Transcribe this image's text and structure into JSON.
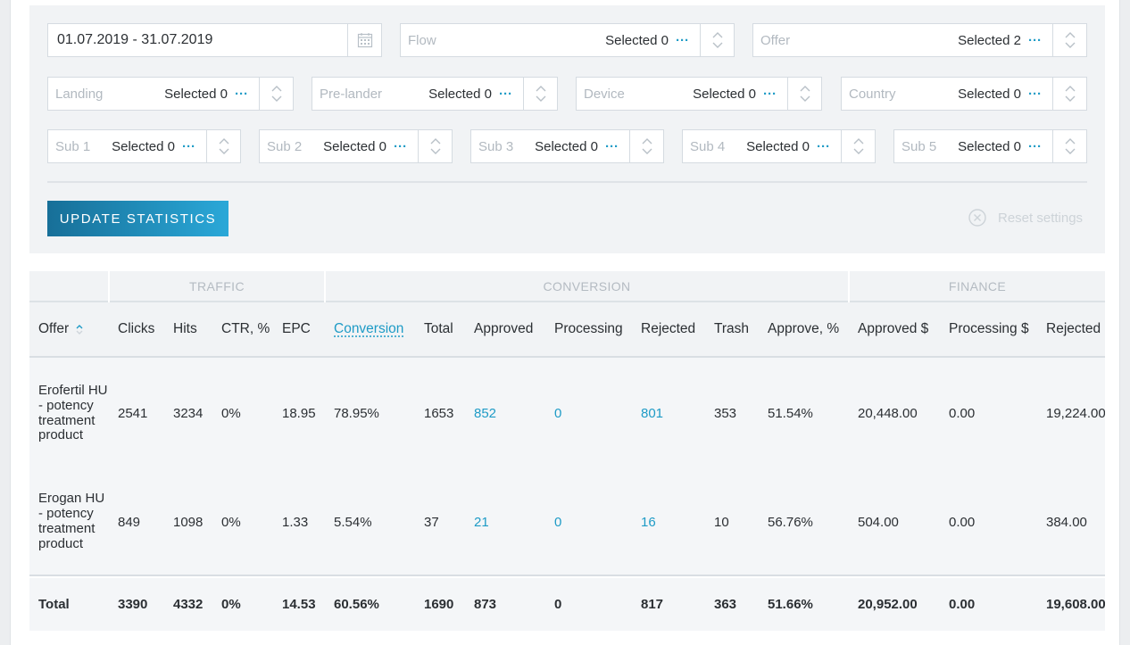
{
  "filters": {
    "date_range": "01.07.2019 - 31.07.2019",
    "flow": {
      "placeholder": "Flow",
      "selected": "Selected 0"
    },
    "offer": {
      "placeholder": "Offer",
      "selected": "Selected 2"
    },
    "landing": {
      "placeholder": "Landing",
      "selected": "Selected 0"
    },
    "prelander": {
      "placeholder": "Pre-lander",
      "selected": "Selected 0"
    },
    "device": {
      "placeholder": "Device",
      "selected": "Selected 0"
    },
    "country": {
      "placeholder": "Country",
      "selected": "Selected 0"
    },
    "sub1": {
      "placeholder": "Sub 1",
      "selected": "Selected 0"
    },
    "sub2": {
      "placeholder": "Sub 2",
      "selected": "Selected 0"
    },
    "sub3": {
      "placeholder": "Sub 3",
      "selected": "Selected 0"
    },
    "sub4": {
      "placeholder": "Sub 4",
      "selected": "Selected 0"
    },
    "sub5": {
      "placeholder": "Sub 5",
      "selected": "Selected 0"
    },
    "more_glyph": "···"
  },
  "actions": {
    "update_label": "UPDATE STATISTICS",
    "reset_label": "Reset settings"
  },
  "table": {
    "groups": {
      "traffic": "TRAFFIC",
      "conversion": "CONVERSION",
      "finance": "FINANCE"
    },
    "columns": {
      "offer": "Offer",
      "clicks": "Clicks",
      "hits": "Hits",
      "ctr": "CTR, %",
      "epc": "EPC",
      "conversion": "Conversion",
      "total": "Total",
      "approved": "Approved",
      "processing": "Processing",
      "rejected": "Rejected",
      "trash": "Trash",
      "approve_pct": "Approve, %",
      "approved_money": "Approved $",
      "processing_money": "Processing $",
      "rejected_money": "Rejected"
    },
    "rows": [
      {
        "offer": "Erofertil HU - potency treatment product",
        "clicks": "2541",
        "hits": "3234",
        "ctr": "0%",
        "epc": "18.95",
        "conversion": "78.95%",
        "total": "1653",
        "approved": "852",
        "processing": "0",
        "rejected": "801",
        "trash": "353",
        "approve_pct": "51.54%",
        "approved_money": "20,448.00",
        "processing_money": "0.00",
        "rejected_money": "19,224.00"
      },
      {
        "offer": "Erogan HU - potency treatment product",
        "clicks": "849",
        "hits": "1098",
        "ctr": "0%",
        "epc": "1.33",
        "conversion": "5.54%",
        "total": "37",
        "approved": "21",
        "processing": "0",
        "rejected": "16",
        "trash": "10",
        "approve_pct": "56.76%",
        "approved_money": "504.00",
        "processing_money": "0.00",
        "rejected_money": "384.00"
      }
    ],
    "totals": {
      "offer": "Total",
      "clicks": "3390",
      "hits": "4332",
      "ctr": "0%",
      "epc": "14.53",
      "conversion": "60.56%",
      "total": "1690",
      "approved": "873",
      "processing": "0",
      "rejected": "817",
      "trash": "363",
      "approve_pct": "51.66%",
      "approved_money": "20,952.00",
      "processing_money": "0.00",
      "rejected_money": "19,608.00"
    }
  },
  "colors": {
    "accent": "#1e9bc6",
    "button": "#176f98"
  }
}
